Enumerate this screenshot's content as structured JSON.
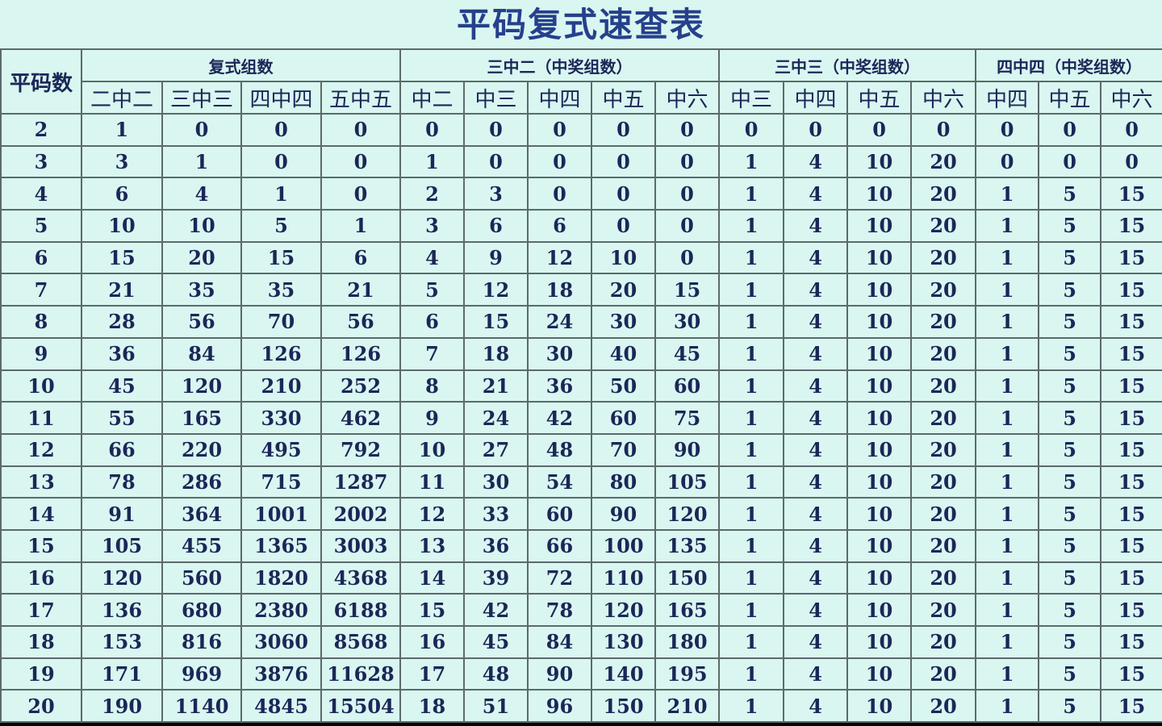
{
  "title": "平码复式速查表",
  "corner_header": "平码数",
  "groups": [
    "复式组数",
    "三中二（中奖组数）",
    "三中三（中奖组数）",
    "四中四（中奖组数）"
  ],
  "subheaders": [
    "二中二",
    "三中三",
    "四中四",
    "五中五",
    "中二",
    "中三",
    "中四",
    "中五",
    "中六",
    "中三",
    "中四",
    "中五",
    "中六",
    "中四",
    "中五",
    "中六"
  ],
  "rows": [
    [
      "2",
      "1",
      "0",
      "0",
      "0",
      "0",
      "0",
      "0",
      "0",
      "0",
      "0",
      "0",
      "0",
      "0",
      "0",
      "0",
      "0"
    ],
    [
      "3",
      "3",
      "1",
      "0",
      "0",
      "1",
      "0",
      "0",
      "0",
      "0",
      "1",
      "4",
      "10",
      "20",
      "0",
      "0",
      "0"
    ],
    [
      "4",
      "6",
      "4",
      "1",
      "0",
      "2",
      "3",
      "0",
      "0",
      "0",
      "1",
      "4",
      "10",
      "20",
      "1",
      "5",
      "15"
    ],
    [
      "5",
      "10",
      "10",
      "5",
      "1",
      "3",
      "6",
      "6",
      "0",
      "0",
      "1",
      "4",
      "10",
      "20",
      "1",
      "5",
      "15"
    ],
    [
      "6",
      "15",
      "20",
      "15",
      "6",
      "4",
      "9",
      "12",
      "10",
      "0",
      "1",
      "4",
      "10",
      "20",
      "1",
      "5",
      "15"
    ],
    [
      "7",
      "21",
      "35",
      "35",
      "21",
      "5",
      "12",
      "18",
      "20",
      "15",
      "1",
      "4",
      "10",
      "20",
      "1",
      "5",
      "15"
    ],
    [
      "8",
      "28",
      "56",
      "70",
      "56",
      "6",
      "15",
      "24",
      "30",
      "30",
      "1",
      "4",
      "10",
      "20",
      "1",
      "5",
      "15"
    ],
    [
      "9",
      "36",
      "84",
      "126",
      "126",
      "7",
      "18",
      "30",
      "40",
      "45",
      "1",
      "4",
      "10",
      "20",
      "1",
      "5",
      "15"
    ],
    [
      "10",
      "45",
      "120",
      "210",
      "252",
      "8",
      "21",
      "36",
      "50",
      "60",
      "1",
      "4",
      "10",
      "20",
      "1",
      "5",
      "15"
    ],
    [
      "11",
      "55",
      "165",
      "330",
      "462",
      "9",
      "24",
      "42",
      "60",
      "75",
      "1",
      "4",
      "10",
      "20",
      "1",
      "5",
      "15"
    ],
    [
      "12",
      "66",
      "220",
      "495",
      "792",
      "10",
      "27",
      "48",
      "70",
      "90",
      "1",
      "4",
      "10",
      "20",
      "1",
      "5",
      "15"
    ],
    [
      "13",
      "78",
      "286",
      "715",
      "1287",
      "11",
      "30",
      "54",
      "80",
      "105",
      "1",
      "4",
      "10",
      "20",
      "1",
      "5",
      "15"
    ],
    [
      "14",
      "91",
      "364",
      "1001",
      "2002",
      "12",
      "33",
      "60",
      "90",
      "120",
      "1",
      "4",
      "10",
      "20",
      "1",
      "5",
      "15"
    ],
    [
      "15",
      "105",
      "455",
      "1365",
      "3003",
      "13",
      "36",
      "66",
      "100",
      "135",
      "1",
      "4",
      "10",
      "20",
      "1",
      "5",
      "15"
    ],
    [
      "16",
      "120",
      "560",
      "1820",
      "4368",
      "14",
      "39",
      "72",
      "110",
      "150",
      "1",
      "4",
      "10",
      "20",
      "1",
      "5",
      "15"
    ],
    [
      "17",
      "136",
      "680",
      "2380",
      "6188",
      "15",
      "42",
      "78",
      "120",
      "165",
      "1",
      "4",
      "10",
      "20",
      "1",
      "5",
      "15"
    ],
    [
      "18",
      "153",
      "816",
      "3060",
      "8568",
      "16",
      "45",
      "84",
      "130",
      "180",
      "1",
      "4",
      "10",
      "20",
      "1",
      "5",
      "15"
    ],
    [
      "19",
      "171",
      "969",
      "3876",
      "11628",
      "17",
      "48",
      "90",
      "140",
      "195",
      "1",
      "4",
      "10",
      "20",
      "1",
      "5",
      "15"
    ],
    [
      "20",
      "190",
      "1140",
      "4845",
      "15504",
      "18",
      "51",
      "96",
      "150",
      "210",
      "1",
      "4",
      "10",
      "20",
      "1",
      "5",
      "15"
    ]
  ]
}
